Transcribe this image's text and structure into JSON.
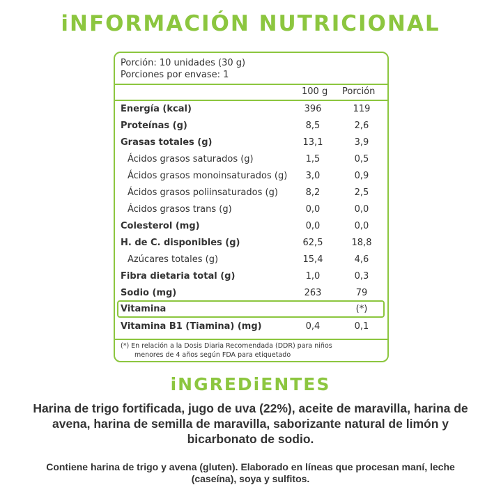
{
  "title": "iNFORMACIÓN NUTRICIONAL",
  "colors": {
    "accent": "#8cc63f",
    "text": "#333333"
  },
  "portion": {
    "line1": "Porción: 10 unidades (30 g)",
    "line2": "Porciones por envase: 1"
  },
  "columns": {
    "per100": "100 g",
    "portion": "Porción"
  },
  "rows": [
    {
      "label": "Energía (kcal)",
      "v100": "396",
      "vpor": "119",
      "bold": true
    },
    {
      "label": "Proteínas (g)",
      "v100": "8,5",
      "vpor": "2,6",
      "bold": true
    },
    {
      "label": "Grasas totales (g)",
      "v100": "13,1",
      "vpor": "3,9",
      "bold": true
    },
    {
      "label": "Ácidos grasos saturados (g)",
      "v100": "1,5",
      "vpor": "0,5"
    },
    {
      "label": "Ácidos grasos monoinsaturados (g)",
      "v100": "3,0",
      "vpor": "0,9"
    },
    {
      "label": "Ácidos grasos poliinsaturados (g)",
      "v100": "8,2",
      "vpor": "2,5"
    },
    {
      "label": "Ácidos grasos trans (g)",
      "v100": "0,0",
      "vpor": "0,0"
    },
    {
      "label": "Colesterol (mg)",
      "v100": "0,0",
      "vpor": "0,0",
      "bold": true
    },
    {
      "label": "H. de C. disponibles (g)",
      "v100": "62,5",
      "vpor": "18,8",
      "bold": true
    },
    {
      "label": "Azúcares totales (g)",
      "v100": "15,4",
      "vpor": "4,6"
    },
    {
      "label": "Fibra dietaria total (g)",
      "v100": "1,0",
      "vpor": "0,3",
      "bold": true
    },
    {
      "label": "Sodio (mg)",
      "v100": "263",
      "vpor": "79",
      "bold": true
    },
    {
      "label": "Vitamina",
      "v100": "",
      "vpor": "(*)",
      "bold": true
    },
    {
      "label": "Vitamina B1 (Tiamina) (mg)",
      "v100": "0,4",
      "vpor": "0,1",
      "bold": true
    }
  ],
  "footnote": {
    "line1": "(*) En relación a la Dosis Diaria Recomendada (DDR) para niños",
    "line2": "menores de 4 años según FDA para etiquetado"
  },
  "ingredients_title": "iNGREDiENTES",
  "ingredients_text": "Harina de trigo fortificada, jugo de uva (22%), aceite de maravilla, harina de avena, harina de semilla de maravilla, saborizante natural de limón y bicarbonato de sodio.",
  "allergens_text": "Contiene harina de trigo y avena (gluten). Elaborado en líneas que procesan maní, leche (caseína), soya y sulfitos."
}
